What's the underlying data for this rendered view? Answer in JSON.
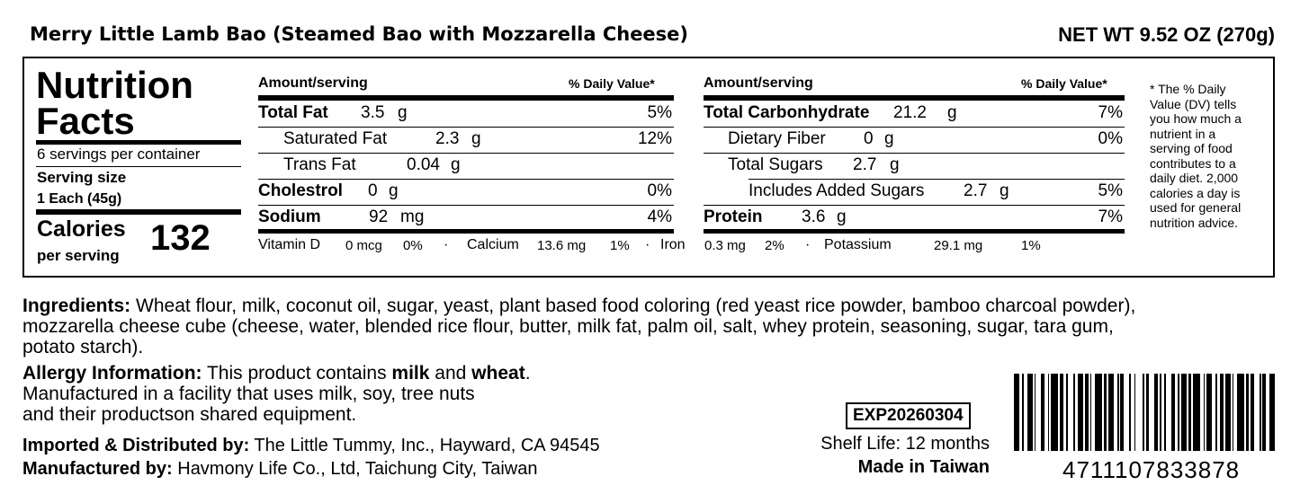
{
  "product_title": "Merry Little Lamb Bao (Steamed Bao with Mozzarella Cheese)",
  "net_weight": "NET WT 9.52 OZ (270g)",
  "facts": {
    "heading_line1": "Nutrition",
    "heading_line2": "Facts",
    "servings_per_container": "6 servings per container",
    "serving_size_label": "Serving size",
    "serving_size_value": "1 Each (45g)",
    "calories_label": "Calories",
    "per_serving": "per serving",
    "calories_value": "132"
  },
  "left_table": {
    "amount_header": "Amount/serving",
    "dv_header": "% Daily Value*",
    "rows": [
      {
        "name": "Total Fat",
        "amount": "3.5",
        "unit": "g",
        "dv": "5%"
      },
      {
        "name": "Saturated Fat",
        "amount": "2.3",
        "unit": "g",
        "dv": "12%"
      },
      {
        "name": "Trans Fat",
        "amount": "0.04",
        "unit": "g",
        "dv": ""
      },
      {
        "name": "Cholestrol",
        "amount": "0",
        "unit": "g",
        "dv": "0%"
      },
      {
        "name": "Sodium",
        "amount": "92",
        "unit": "mg",
        "dv": "4%"
      }
    ]
  },
  "right_table": {
    "amount_header": "Amount/serving",
    "dv_header": "% Daily Value*",
    "rows": [
      {
        "name": "Total Carbonhydrate",
        "amount": "21.2",
        "unit": "g",
        "dv": "7%"
      },
      {
        "name": "Dietary Fiber",
        "amount": "0",
        "unit": "g",
        "dv": "0%"
      },
      {
        "name": "Total Sugars",
        "amount": "2.7",
        "unit": "g",
        "dv": ""
      },
      {
        "name": "Includes Added Sugars",
        "amount": "2.7",
        "unit": "g",
        "dv": "5%"
      },
      {
        "name": "Protein",
        "amount": "3.6",
        "unit": "g",
        "dv": "7%"
      }
    ]
  },
  "vitamins": {
    "vitd_label": "Vitamin D",
    "vitd_amount": "0 mcg",
    "vitd_dv": "0%",
    "calcium_label": "Calcium",
    "calcium_amount": "13.6 mg",
    "calcium_dv": "1%",
    "iron_label": "Iron",
    "iron_amount": "0.3 mg",
    "iron_dv": "2%",
    "potassium_label": "Potassium",
    "potassium_amount": "29.1 mg",
    "potassium_dv": "1%",
    "separator": "·"
  },
  "footnote_lines": [
    "* The % Daily",
    "Value (DV) tells",
    "you how much a",
    "nutrient in a",
    "serving of food",
    "contributes to a",
    "daily diet. 2,000",
    "calories a day is",
    "used for general",
    "nutrition advice."
  ],
  "ingredients": {
    "label": "Ingredients:",
    "line1": " Wheat flour, milk, coconut oil, sugar, yeast, plant based food coloring (red yeast rice powder, bamboo charcoal powder),",
    "line2": "mozzarella cheese cube (cheese, water, blended rice flour, butter, milk fat, palm oil, salt, whey protein, seasoning, sugar, tara gum,",
    "line3": "potato starch)."
  },
  "allergy": {
    "label": "Allergy Information:",
    "text_a": " This product contains ",
    "milk": "milk",
    "text_b": " and ",
    "wheat": "wheat",
    "text_c": ".",
    "line2": "Manufactured in a facility that uses milk, soy, tree nuts",
    "line3": "and their productson shared equipment."
  },
  "importer": {
    "label": "Imported & Distributed by:",
    "value": " The Little Tummy, Inc., Hayward, CA 94545"
  },
  "manufacturer": {
    "label": "Manufactured by:",
    "value": " Havmony Life Co., Ltd, Taichung City, Taiwan"
  },
  "expiry": "EXP20260304",
  "shelf_life": "Shelf Life: 12 months",
  "origin": "Made in Taiwan",
  "barcode_number": "4711107833878"
}
